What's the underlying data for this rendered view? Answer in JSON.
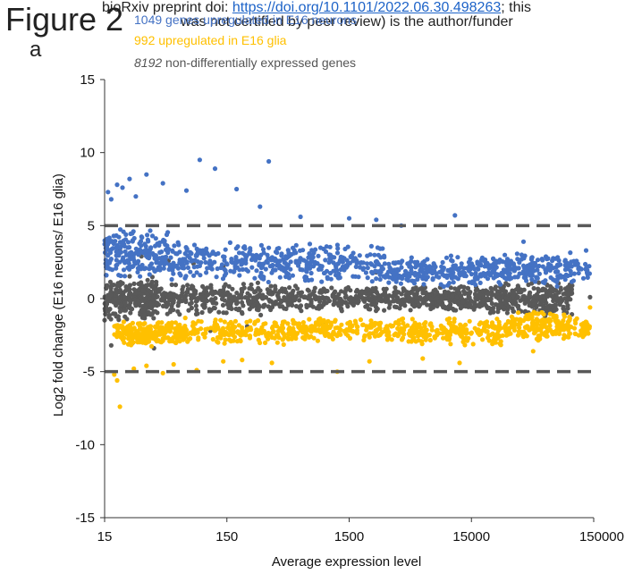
{
  "header": {
    "figure_label": "Figure 2",
    "biorxiv_prefix": "bioRxiv preprint doi: ",
    "doi_url": "https://doi.org/10.1101/2022.06.30.498263",
    "biorxiv_suffix": "; this",
    "biorxiv_line2": "was not certified by peer review) is the author/funder"
  },
  "panel_label": "a",
  "legend": {
    "neuron_text": "1049 genes upregulated in E16 neurons",
    "glia_text": "992 upregulated in E16 glia",
    "nonde_count": "8192",
    "nonde_text": " non-differentially expressed genes"
  },
  "colors": {
    "neuron": "#4472c4",
    "glia": "#ffc000",
    "nonde": "#595959",
    "threshold": "#595959",
    "axis": "#333333"
  },
  "chart_data": {
    "type": "scatter",
    "xscale": "log",
    "xlim": [
      15,
      150000
    ],
    "ylim": [
      -15,
      15
    ],
    "xticks": [
      15,
      150,
      1500,
      15000,
      150000
    ],
    "xtick_labels": [
      "15",
      "150",
      "1500",
      "15000",
      "150000"
    ],
    "yticks": [
      15,
      10,
      5,
      0,
      -5,
      -10,
      -15
    ],
    "ytick_labels": [
      "15",
      "10",
      "5",
      "0",
      "-5",
      "-10",
      "-15"
    ],
    "xlabel": "Average expression level",
    "ylabel": "Log2 fold change (E16 neuons/ E16 glia)",
    "threshold_lines": [
      5,
      -5
    ],
    "series": [
      {
        "key": "nonde",
        "count": 8192,
        "bands": [
          [
            15,
            40,
            -1.6,
            1.6
          ],
          [
            40,
            400,
            -1.2,
            1.2
          ],
          [
            400,
            4000,
            -0.9,
            0.9
          ],
          [
            4000,
            20000,
            -0.9,
            0.9
          ],
          [
            20000,
            100000,
            -1.2,
            1.2
          ]
        ],
        "points": [
          [
            16,
            3.0
          ],
          [
            17,
            -3.2
          ],
          [
            20,
            3.4
          ],
          [
            25,
            -3.1
          ],
          [
            30,
            2.9
          ],
          [
            38,
            -3.4
          ],
          [
            50,
            2.6
          ],
          [
            65,
            -2.6
          ],
          [
            80,
            2.4
          ],
          [
            110,
            -2.2
          ],
          [
            140,
            2.2
          ],
          [
            220,
            -1.9
          ],
          [
            600,
            2.0
          ],
          [
            900,
            -1.7
          ],
          [
            2500,
            1.8
          ],
          [
            30000,
            1.7
          ],
          [
            60000,
            -1.2
          ],
          [
            140000,
            0.1
          ]
        ]
      },
      {
        "key": "neuron",
        "count": 1049,
        "bands": [
          [
            15,
            50,
            1.2,
            5.0
          ],
          [
            50,
            400,
            1.0,
            4.0
          ],
          [
            400,
            3000,
            1.0,
            3.8
          ],
          [
            3000,
            20000,
            0.8,
            3.0
          ],
          [
            20000,
            140000,
            0.8,
            3.2
          ]
        ],
        "points": [
          [
            16,
            7.3
          ],
          [
            17,
            6.8
          ],
          [
            19,
            7.8
          ],
          [
            21,
            7.6
          ],
          [
            24,
            8.2
          ],
          [
            27,
            7.0
          ],
          [
            33,
            8.5
          ],
          [
            45,
            7.9
          ],
          [
            70,
            7.4
          ],
          [
            90,
            9.5
          ],
          [
            120,
            8.9
          ],
          [
            180,
            7.5
          ],
          [
            280,
            6.3
          ],
          [
            330,
            9.4
          ],
          [
            600,
            5.6
          ],
          [
            1500,
            5.5
          ],
          [
            2500,
            5.4
          ],
          [
            4000,
            5.0
          ],
          [
            11000,
            5.7
          ],
          [
            40000,
            3.9
          ],
          [
            130000,
            3.3
          ]
        ]
      },
      {
        "key": "glia",
        "count": 992,
        "bands": [
          [
            18,
            60,
            -3.3,
            -1.5
          ],
          [
            60,
            500,
            -3.2,
            -1.3
          ],
          [
            500,
            4000,
            -3.0,
            -1.3
          ],
          [
            4000,
            30000,
            -3.3,
            -1.2
          ],
          [
            30000,
            140000,
            -3.0,
            -0.8
          ]
        ],
        "points": [
          [
            18,
            -5.2
          ],
          [
            19,
            -5.6
          ],
          [
            20,
            -7.4
          ],
          [
            26,
            -4.8
          ],
          [
            33,
            -4.6
          ],
          [
            45,
            -5.1
          ],
          [
            55,
            -4.5
          ],
          [
            85,
            -4.9
          ],
          [
            140,
            -4.3
          ],
          [
            200,
            -4.2
          ],
          [
            350,
            -4.4
          ],
          [
            1200,
            -5.0
          ],
          [
            2200,
            -4.3
          ],
          [
            6000,
            -4.1
          ],
          [
            12000,
            -4.4
          ],
          [
            48000,
            -3.6
          ],
          [
            140000,
            -0.6
          ]
        ]
      }
    ]
  }
}
